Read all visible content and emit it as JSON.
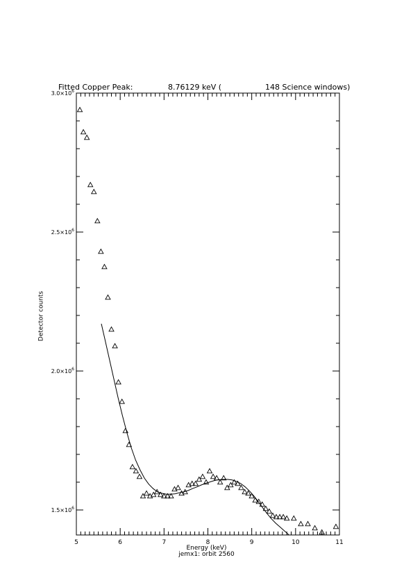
{
  "chart_data": {
    "type": "scatter",
    "title": {
      "label": "Fitted Copper Peak:",
      "value": "8.76129 keV (",
      "windows": "148 Science windows)"
    },
    "xlabel": "Energy (keV)",
    "ylabel": "Detector counts",
    "subtitle": "jemx1: orbit 2560",
    "xlim": [
      5,
      11
    ],
    "ylim": [
      1410000,
      3000000
    ],
    "x_ticks": [
      5,
      6,
      7,
      8,
      9,
      10,
      11
    ],
    "x_tick_labels": [
      "5",
      "6",
      "7",
      "8",
      "9",
      "10",
      "11"
    ],
    "y_ticks": [
      1500000,
      2000000,
      2500000,
      3000000
    ],
    "y_tick_labels": [
      "1.5×10",
      "2.0×10",
      "2.5×10",
      "3.0×10"
    ],
    "y_tick_exponent": "6",
    "grid": false,
    "series": [
      {
        "marker": "triangle",
        "x": [
          5.08,
          5.16,
          5.24,
          5.32,
          5.4,
          5.48,
          5.56,
          5.64,
          5.72,
          5.8,
          5.88,
          5.96,
          6.04,
          6.12,
          6.2,
          6.28,
          6.36,
          6.44,
          6.52,
          6.6,
          6.68,
          6.76,
          6.84,
          6.92,
          7.0,
          7.08,
          7.16,
          7.24,
          7.32,
          7.4,
          7.48,
          7.56,
          7.64,
          7.72,
          7.8,
          7.88,
          7.96,
          8.04,
          8.12,
          8.2,
          8.28,
          8.36,
          8.44,
          8.52,
          8.6,
          8.68,
          8.76,
          8.84,
          8.92,
          9.0,
          9.08,
          9.16,
          9.24,
          9.32,
          9.4,
          9.48,
          9.56,
          9.64,
          9.72,
          9.8,
          9.96,
          10.12,
          10.28,
          10.44,
          10.6,
          10.92
        ],
        "y": [
          2940000,
          2860000,
          2840000,
          2670000,
          2645000,
          2540000,
          2430000,
          2375000,
          2265000,
          2150000,
          2090000,
          1960000,
          1890000,
          1785000,
          1735000,
          1655000,
          1640000,
          1620000,
          1550000,
          1560000,
          1550000,
          1555000,
          1565000,
          1555000,
          1550000,
          1550000,
          1550000,
          1575000,
          1580000,
          1560000,
          1565000,
          1590000,
          1595000,
          1595000,
          1610000,
          1620000,
          1600000,
          1640000,
          1620000,
          1615000,
          1600000,
          1615000,
          1580000,
          1590000,
          1600000,
          1595000,
          1580000,
          1565000,
          1560000,
          1550000,
          1535000,
          1530000,
          1520000,
          1505000,
          1495000,
          1480000,
          1475000,
          1475000,
          1475000,
          1470000,
          1470000,
          1450000,
          1450000,
          1435000,
          1420000,
          1440000
        ]
      },
      {
        "marker": "line",
        "x": [
          5.57,
          5.65,
          5.75,
          5.85,
          5.95,
          6.05,
          6.15,
          6.25,
          6.35,
          6.45,
          6.55,
          6.65,
          6.75,
          6.85,
          6.95,
          7.05,
          7.15,
          7.25,
          7.35,
          7.45,
          7.55,
          7.65,
          7.75,
          7.85,
          7.95,
          8.05,
          8.15,
          8.25,
          8.35,
          8.45,
          8.55,
          8.65,
          8.75,
          8.85,
          8.95,
          9.05,
          9.15,
          9.25,
          9.35,
          9.45,
          9.55,
          9.65,
          9.75,
          9.85
        ],
        "y": [
          2170000,
          2115000,
          2045000,
          1975000,
          1905000,
          1840000,
          1780000,
          1725000,
          1680000,
          1645000,
          1615000,
          1593000,
          1577000,
          1565000,
          1560000,
          1557000,
          1557000,
          1558000,
          1562000,
          1565000,
          1570000,
          1577000,
          1583000,
          1590000,
          1596000,
          1601000,
          1606000,
          1609000,
          1610000,
          1610000,
          1608000,
          1603000,
          1595000,
          1583000,
          1568000,
          1550000,
          1530000,
          1508000,
          1487000,
          1468000,
          1452000,
          1438000,
          1424000,
          1410000
        ]
      }
    ]
  }
}
